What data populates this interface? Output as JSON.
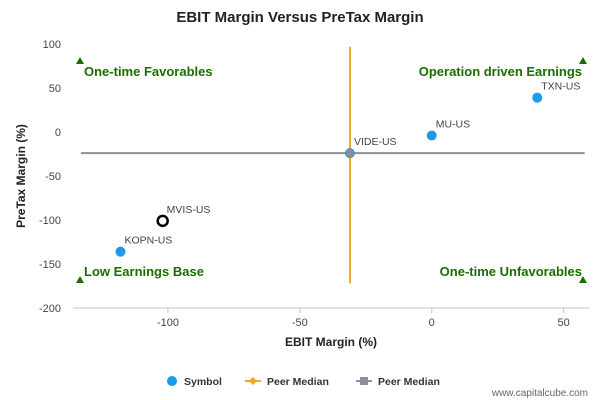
{
  "chart_data": {
    "type": "scatter",
    "title": "EBIT Margin Versus PreTax Margin",
    "xlabel": "EBIT Margin (%)",
    "ylabel": "PreTax Margin (%)",
    "xlim": [
      -136,
      60
    ],
    "ylim": [
      -200,
      100
    ],
    "x_ticks": [
      -100,
      -50,
      0,
      50
    ],
    "y_ticks": [
      100,
      50,
      0,
      -50,
      -100,
      -150,
      -200
    ],
    "points": [
      {
        "label": "TXN-US",
        "x": 40,
        "y": 39,
        "marker": "filled",
        "color": "#1e9be8"
      },
      {
        "label": "MU-US",
        "x": 0,
        "y": -4,
        "marker": "filled",
        "color": "#1e9be8"
      },
      {
        "label": "VIDE-US",
        "x": -31,
        "y": -24,
        "marker": "filled",
        "color": "#1e9be8"
      },
      {
        "label": "MVIS-US",
        "x": -102,
        "y": -101,
        "marker": "open",
        "color": "#000000"
      },
      {
        "label": "KOPN-US",
        "x": -118,
        "y": -136,
        "marker": "filled",
        "color": "#1e9be8"
      }
    ],
    "peer_median": {
      "x": -31,
      "y": -24
    },
    "quadrant_labels": {
      "top_left": "One-time Favorables",
      "top_right": "Operation driven Earnings",
      "bottom_left": "Low Earnings Base",
      "bottom_right": "One-time Unfavorables"
    },
    "legend": [
      {
        "label": "Symbol",
        "color": "#1e9be8"
      },
      {
        "label": "Peer Median",
        "color": "#f5a623"
      },
      {
        "label": "Peer Median",
        "color": "#8a8f99"
      }
    ],
    "colors": {
      "quadrant_text": "#1a6e00",
      "marker_arrow": "#1a6e00",
      "vertical_median": "#f5a623",
      "horizontal_median": "#8a8f99"
    },
    "grid": false,
    "legend_position": "bottom"
  },
  "credit": "www.capitalcube.com"
}
